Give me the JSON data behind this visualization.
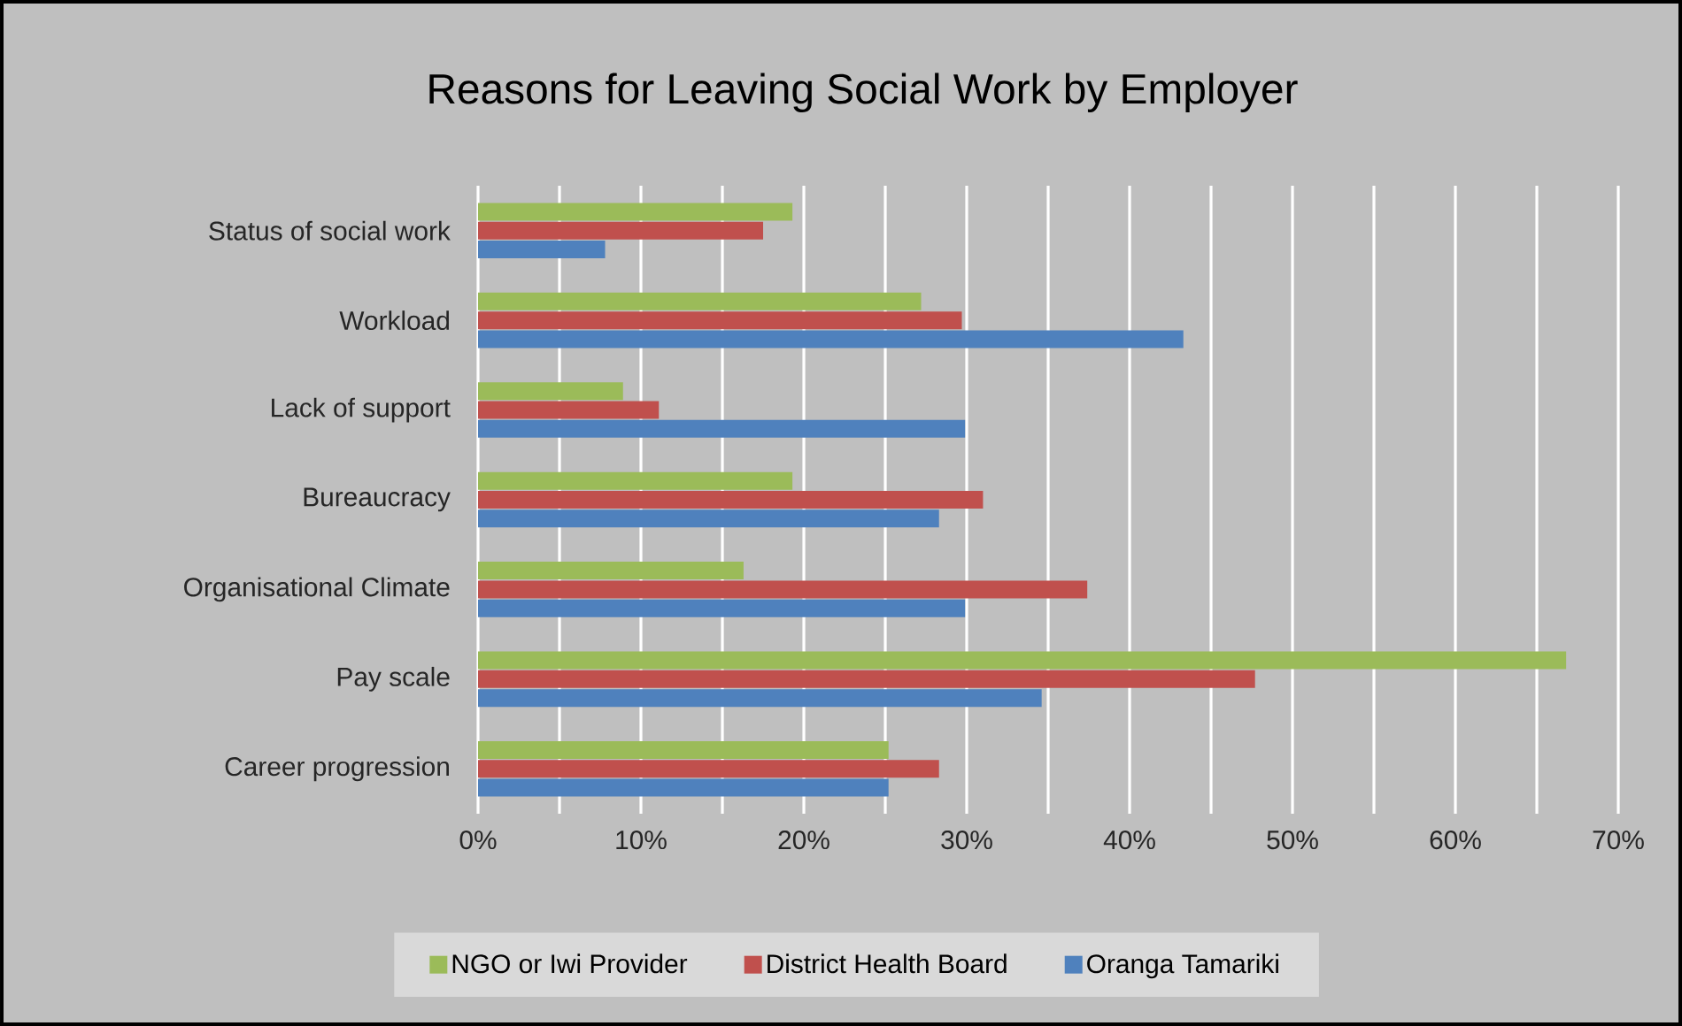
{
  "chart_data": {
    "type": "bar",
    "orientation": "horizontal",
    "title": "Reasons for Leaving Social Work by Employer",
    "categories": [
      "Status of social work",
      "Workload",
      "Lack of support",
      "Bureaucracy",
      "Organisational Climate",
      "Pay scale",
      "Career progression"
    ],
    "series": [
      {
        "name": "NGO or Iwi Provider",
        "color": "#9bbb59",
        "values": [
          19.3,
          27.2,
          8.9,
          19.3,
          16.3,
          66.8,
          25.2
        ]
      },
      {
        "name": "District Health Board",
        "color": "#c0504d",
        "values": [
          17.5,
          29.7,
          11.1,
          31.0,
          37.4,
          47.7,
          28.3
        ]
      },
      {
        "name": "Oranga Tamariki",
        "color": "#4f81bd",
        "values": [
          7.8,
          43.3,
          29.9,
          28.3,
          29.9,
          34.6,
          25.2
        ]
      }
    ],
    "xlim": [
      0,
      70
    ],
    "xticks": [
      {
        "value": 0,
        "label": "0%"
      },
      {
        "value": 5,
        "label": null
      },
      {
        "value": 10,
        "label": "10%"
      },
      {
        "value": 15,
        "label": null
      },
      {
        "value": 20,
        "label": "20%"
      },
      {
        "value": 25,
        "label": null
      },
      {
        "value": 30,
        "label": "30%"
      },
      {
        "value": 35,
        "label": null
      },
      {
        "value": 40,
        "label": "40%"
      },
      {
        "value": 45,
        "label": null
      },
      {
        "value": 50,
        "label": "50%"
      },
      {
        "value": 55,
        "label": null
      },
      {
        "value": 60,
        "label": "60%"
      },
      {
        "value": 65,
        "label": null
      },
      {
        "value": 70,
        "label": "70%"
      }
    ],
    "grid": "x",
    "legend": "bottom"
  }
}
